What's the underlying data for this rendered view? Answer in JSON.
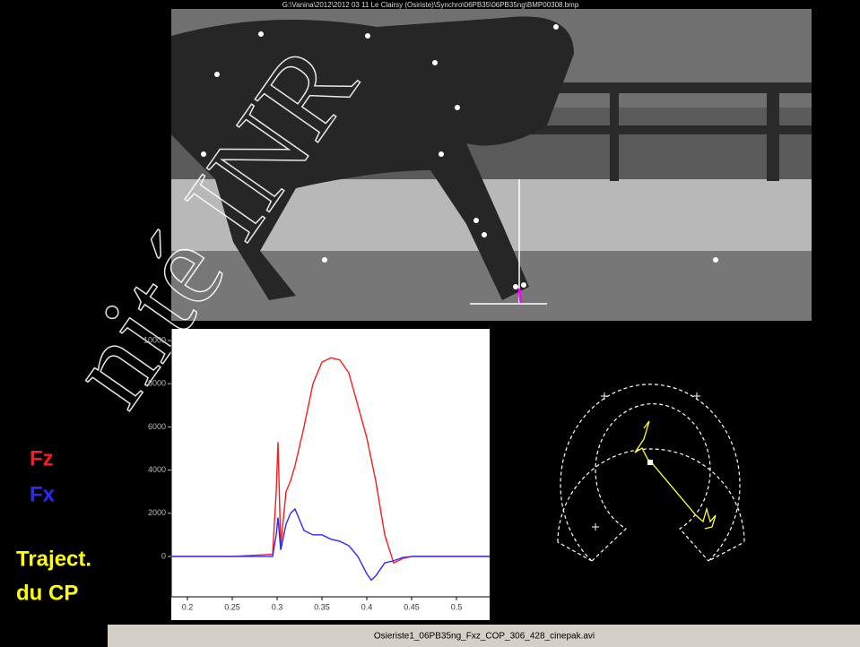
{
  "header": {
    "file_path": "G:\\Vanina\\2012\\2012 03 11  Le Clairsy (Osiriste)\\Synchro\\06PB35\\06PB35ng\\BMP00308.bmp"
  },
  "watermark": "nité INR",
  "annotation": {
    "line1": "Traject.",
    "line2": "du CP"
  },
  "footer": {
    "filename": "Osieriste1_06PB35ng_Fxz_COP_306_428_cinepak.avi"
  },
  "chart_data": {
    "type": "line",
    "x": [
      0.182,
      0.25,
      0.295,
      0.299,
      0.301,
      0.304,
      0.31,
      0.315,
      0.32,
      0.33,
      0.34,
      0.35,
      0.36,
      0.37,
      0.38,
      0.39,
      0.4,
      0.405,
      0.41,
      0.42,
      0.43,
      0.44,
      0.45,
      0.5,
      0.537
    ],
    "series": [
      {
        "name": "Fz",
        "color": "#ff1a1a",
        "values": [
          0,
          0,
          100,
          3000,
          5300,
          500,
          3000,
          3500,
          4200,
          6000,
          8000,
          9000,
          9200,
          9100,
          8500,
          7000,
          5500,
          4500,
          3500,
          1000,
          -300,
          -100,
          0,
          0,
          0
        ]
      },
      {
        "name": "Fx",
        "color": "#2a2aff",
        "values": [
          0,
          0,
          0,
          1000,
          1800,
          300,
          1500,
          2000,
          2200,
          1200,
          1000,
          1000,
          800,
          700,
          500,
          0,
          -800,
          -1100,
          -900,
          -300,
          -200,
          -50,
          0,
          0,
          0
        ]
      }
    ],
    "xlim": [
      0.182,
      0.537
    ],
    "ylim": [
      -1870,
      10540
    ],
    "xticks": [
      0.2,
      0.25,
      0.3,
      0.35,
      0.4,
      0.45,
      0.5
    ],
    "yticks": [
      0,
      2000,
      4000,
      6000,
      8000,
      10000
    ]
  }
}
